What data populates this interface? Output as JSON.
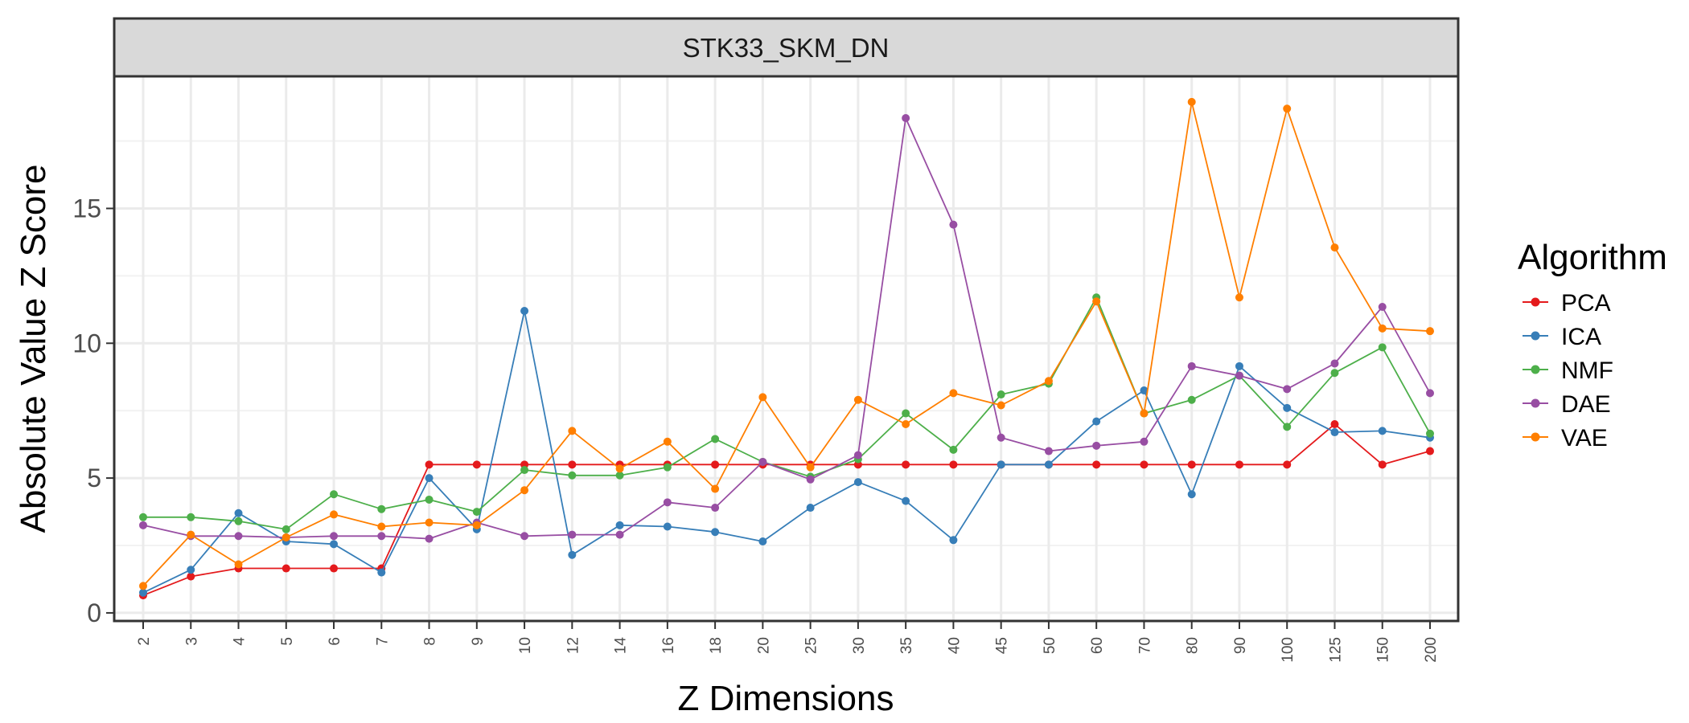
{
  "chart_data": {
    "type": "line",
    "title": "STK33_SKM_DN",
    "xlabel": "Z Dimensions",
    "ylabel": "Absolute Value Z Score",
    "categories": [
      "2",
      "3",
      "4",
      "5",
      "6",
      "7",
      "8",
      "9",
      "10",
      "12",
      "14",
      "16",
      "18",
      "20",
      "25",
      "30",
      "35",
      "40",
      "45",
      "50",
      "60",
      "70",
      "80",
      "90",
      "100",
      "125",
      "150",
      "200"
    ],
    "yticks": [
      0,
      5,
      10,
      15
    ],
    "ylim": [
      -0.3,
      19.9
    ],
    "grid": true,
    "legend": {
      "title": "Algorithm",
      "position": "right"
    },
    "series": [
      {
        "name": "PCA",
        "color": "#E41A1C",
        "values": [
          0.65,
          1.35,
          1.65,
          1.65,
          1.65,
          1.65,
          5.5,
          5.5,
          5.5,
          5.5,
          5.5,
          5.5,
          5.5,
          5.5,
          5.5,
          5.5,
          5.5,
          5.5,
          5.5,
          5.5,
          5.5,
          5.5,
          5.5,
          5.5,
          5.5,
          7.0,
          5.5,
          6.0
        ]
      },
      {
        "name": "ICA",
        "color": "#377EB8",
        "values": [
          0.75,
          1.6,
          3.7,
          2.65,
          2.55,
          1.5,
          5.0,
          3.1,
          11.2,
          2.15,
          3.25,
          3.2,
          3.0,
          2.65,
          3.9,
          4.85,
          4.15,
          2.7,
          5.5,
          5.5,
          7.1,
          8.25,
          4.4,
          9.15,
          7.6,
          6.7,
          6.75,
          6.5
        ]
      },
      {
        "name": "NMF",
        "color": "#4DAF4A",
        "values": [
          3.55,
          3.55,
          3.4,
          3.1,
          4.4,
          3.85,
          4.2,
          3.75,
          5.3,
          5.1,
          5.1,
          5.4,
          6.45,
          5.6,
          5.05,
          5.7,
          7.4,
          6.05,
          8.1,
          8.5,
          11.7,
          7.4,
          7.9,
          8.8,
          6.9,
          8.9,
          9.85,
          6.65
        ]
      },
      {
        "name": "DAE",
        "color": "#984EA3",
        "values": [
          3.25,
          2.85,
          2.85,
          2.8,
          2.85,
          2.85,
          2.75,
          3.35,
          2.85,
          2.9,
          2.9,
          4.1,
          3.9,
          5.6,
          4.95,
          5.85,
          18.35,
          14.4,
          6.5,
          6.0,
          6.2,
          6.35,
          9.15,
          8.8,
          8.3,
          9.25,
          11.35,
          8.15
        ]
      },
      {
        "name": "VAE",
        "color": "#FF7F00",
        "values": [
          1.0,
          2.9,
          1.8,
          2.8,
          3.65,
          3.2,
          3.35,
          3.25,
          4.55,
          6.75,
          5.35,
          6.35,
          4.6,
          8.0,
          5.4,
          7.9,
          7.0,
          8.15,
          7.7,
          8.6,
          11.55,
          7.4,
          18.95,
          11.7,
          18.7,
          13.55,
          10.55,
          10.45
        ]
      }
    ]
  }
}
